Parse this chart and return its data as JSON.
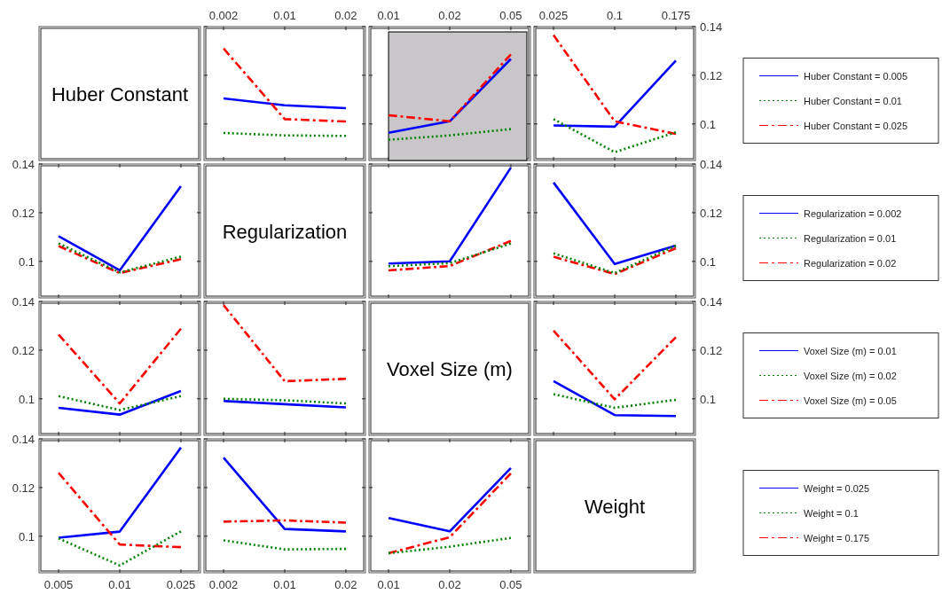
{
  "chart_data": [
    {
      "type": "other",
      "title": "Huber Constant"
    },
    {
      "type": "line",
      "categories": [
        "0.002",
        "0.01",
        "0.02"
      ],
      "ylim": [
        0.085,
        0.14
      ],
      "yticks": [
        0.1,
        0.12,
        0.14
      ],
      "tick_labels": "x",
      "series": [
        {
          "color": "#0000ff",
          "line_style": "solid",
          "values": [
            0.1105,
            0.1077,
            0.1065
          ]
        },
        {
          "color": "#008000",
          "line_style": "dotted",
          "values": [
            0.0963,
            0.0953,
            0.0951
          ]
        },
        {
          "color": "#ff0000",
          "line_style": "dashed",
          "values": [
            0.131,
            0.102,
            0.101
          ]
        }
      ]
    },
    {
      "type": "line",
      "categories": [
        "0.01",
        "0.02",
        "0.05"
      ],
      "ylim": [
        0.085,
        0.14
      ],
      "yticks": [
        0.1,
        0.12,
        0.14
      ],
      "tick_labels": "x",
      "bands": [
        {
          "axis": "x",
          "from": "0.01",
          "to": "0.05",
          "color": "#c8c6c8"
        }
      ],
      "series": [
        {
          "color": "#0000ff",
          "line_style": "solid",
          "values": [
            0.0964,
            0.1011,
            0.1267
          ]
        },
        {
          "color": "#008000",
          "line_style": "dotted",
          "values": [
            0.0935,
            0.0953,
            0.0979
          ]
        },
        {
          "color": "#ff0000",
          "line_style": "dashed",
          "values": [
            0.1036,
            0.1011,
            0.1286
          ]
        }
      ]
    },
    {
      "type": "line",
      "categories": [
        "0.025",
        "0.1",
        "0.175"
      ],
      "ylim": [
        0.085,
        0.14
      ],
      "yticks": [
        0.1,
        0.12,
        0.14
      ],
      "legend": "right",
      "series": [
        {
          "name": "Huber Constant = 0.005",
          "color": "#0000ff",
          "line_style": "solid",
          "values": [
            0.0994,
            0.0989,
            0.126
          ]
        },
        {
          "name": "Huber Constant = 0.01",
          "color": "#008000",
          "line_style": "dotted",
          "values": [
            0.102,
            0.0884,
            0.0966
          ]
        },
        {
          "name": "Huber Constant = 0.025",
          "color": "#ff0000",
          "line_style": "dashed",
          "values": [
            0.1365,
            0.1011,
            0.0959
          ]
        }
      ]
    },
    {
      "type": "line",
      "categories": [
        "0.005",
        "0.01",
        "0.025"
      ],
      "ylim": [
        0.085,
        0.14
      ],
      "yticks": [
        0.1,
        0.12,
        0.14
      ],
      "tick_labels": "y",
      "series": [
        {
          "color": "#0000ff",
          "line_style": "solid",
          "values": [
            0.1104,
            0.0963,
            0.1309
          ]
        },
        {
          "color": "#008000",
          "line_style": "dotted",
          "values": [
            0.1074,
            0.0955,
            0.1019
          ]
        },
        {
          "color": "#ff0000",
          "line_style": "dashed",
          "values": [
            0.1063,
            0.0952,
            0.1009
          ]
        }
      ]
    },
    {
      "type": "other",
      "title": "Regularization"
    },
    {
      "type": "line",
      "categories": [
        "0.01",
        "0.02",
        "0.05"
      ],
      "ylim": [
        0.085,
        0.14
      ],
      "yticks": [
        0.1,
        0.12,
        0.14
      ],
      "tick_labels": false,
      "series": [
        {
          "color": "#0000ff",
          "line_style": "solid",
          "values": [
            0.0991,
            0.1,
            0.1385
          ]
        },
        {
          "color": "#008000",
          "line_style": "dotted",
          "values": [
            0.098,
            0.0993,
            0.1073
          ]
        },
        {
          "color": "#ff0000",
          "line_style": "dashed",
          "values": [
            0.0963,
            0.0981,
            0.1084
          ]
        }
      ]
    },
    {
      "type": "line",
      "categories": [
        "0.025",
        "0.1",
        "0.175"
      ],
      "ylim": [
        0.085,
        0.14
      ],
      "yticks": [
        0.1,
        0.12,
        0.14
      ],
      "tick_labels": "y",
      "legend": "right",
      "series": [
        {
          "name": "Regularization = 0.002",
          "color": "#0000ff",
          "line_style": "solid",
          "values": [
            0.1324,
            0.0989,
            0.1065
          ]
        },
        {
          "name": "Regularization = 0.01",
          "color": "#008000",
          "line_style": "dotted",
          "values": [
            0.1033,
            0.0952,
            0.1065
          ]
        },
        {
          "name": "Regularization = 0.02",
          "color": "#ff0000",
          "line_style": "dashed",
          "values": [
            0.1019,
            0.0948,
            0.1054
          ]
        }
      ]
    },
    {
      "type": "line",
      "categories": [
        "0.005",
        "0.01",
        "0.025"
      ],
      "ylim": [
        0.085,
        0.14
      ],
      "yticks": [
        0.1,
        0.12,
        0.14
      ],
      "tick_labels": "y",
      "series": [
        {
          "color": "#0000ff",
          "line_style": "solid",
          "values": [
            0.0963,
            0.0935,
            0.1032
          ]
        },
        {
          "color": "#008000",
          "line_style": "dotted",
          "values": [
            0.1011,
            0.0954,
            0.1011
          ]
        },
        {
          "color": "#ff0000",
          "line_style": "dashed",
          "values": [
            0.1264,
            0.0981,
            0.1288
          ]
        }
      ]
    },
    {
      "type": "line",
      "categories": [
        "0.002",
        "0.01",
        "0.02"
      ],
      "ylim": [
        0.085,
        0.14
      ],
      "yticks": [
        0.1,
        0.12,
        0.14
      ],
      "tick_labels": false,
      "series": [
        {
          "color": "#0000ff",
          "line_style": "solid",
          "values": [
            0.0991,
            0.0978,
            0.0965
          ]
        },
        {
          "color": "#008000",
          "line_style": "dotted",
          "values": [
            0.1,
            0.0994,
            0.0981
          ]
        },
        {
          "color": "#ff0000",
          "line_style": "dashed",
          "values": [
            0.1385,
            0.1072,
            0.1082
          ]
        }
      ]
    },
    {
      "type": "other",
      "title": "Voxel Size (m)"
    },
    {
      "type": "line",
      "categories": [
        "0.025",
        "0.1",
        "0.175"
      ],
      "ylim": [
        0.085,
        0.14
      ],
      "yticks": [
        0.1,
        0.12,
        0.14
      ],
      "tick_labels": "y",
      "legend": "right",
      "series": [
        {
          "name": "Voxel Size (m) = 0.01",
          "color": "#0000ff",
          "line_style": "solid",
          "values": [
            0.1073,
            0.0933,
            0.0929
          ]
        },
        {
          "name": "Voxel Size (m) = 0.02",
          "color": "#008000",
          "line_style": "dotted",
          "values": [
            0.1019,
            0.0963,
            0.0996
          ]
        },
        {
          "name": "Voxel Size (m) = 0.05",
          "color": "#ff0000",
          "line_style": "dashed",
          "values": [
            0.128,
            0.0998,
            0.1253
          ]
        }
      ]
    },
    {
      "type": "line",
      "categories": [
        "0.005",
        "0.01",
        "0.025"
      ],
      "ylim": [
        0.085,
        0.14
      ],
      "yticks": [
        0.1,
        0.12,
        0.14
      ],
      "series": [
        {
          "color": "#0000ff",
          "line_style": "solid",
          "values": [
            0.0994,
            0.1019,
            0.1364
          ]
        },
        {
          "color": "#008000",
          "line_style": "dotted",
          "values": [
            0.0991,
            0.088,
            0.102
          ]
        },
        {
          "color": "#ff0000",
          "line_style": "dashed",
          "values": [
            0.126,
            0.0966,
            0.0955
          ]
        }
      ]
    },
    {
      "type": "line",
      "categories": [
        "0.002",
        "0.01",
        "0.02"
      ],
      "ylim": [
        0.085,
        0.14
      ],
      "yticks": [
        0.1,
        0.12,
        0.14
      ],
      "tick_labels": "x",
      "series": [
        {
          "color": "#0000ff",
          "line_style": "solid",
          "values": [
            0.1323,
            0.103,
            0.102
          ]
        },
        {
          "color": "#008000",
          "line_style": "dotted",
          "values": [
            0.0983,
            0.0946,
            0.0948
          ]
        },
        {
          "color": "#ff0000",
          "line_style": "dashed",
          "values": [
            0.106,
            0.1065,
            0.1056
          ]
        }
      ]
    },
    {
      "type": "line",
      "categories": [
        "0.01",
        "0.02",
        "0.05"
      ],
      "ylim": [
        0.085,
        0.14
      ],
      "yticks": [
        0.1,
        0.12,
        0.14
      ],
      "tick_labels": "x",
      "legend": "right",
      "series": [
        {
          "name": "Weight = 0.025",
          "color": "#0000ff",
          "line_style": "solid",
          "values": [
            0.1075,
            0.102,
            0.128
          ]
        },
        {
          "name": "Weight = 0.1",
          "color": "#008000",
          "line_style": "dotted",
          "values": [
            0.093,
            0.0957,
            0.0993
          ]
        },
        {
          "name": "Weight = 0.175",
          "color": "#ff0000",
          "line_style": "dashed",
          "values": [
            0.093,
            0.0996,
            0.1258
          ]
        }
      ]
    },
    {
      "type": "other",
      "title": "Weight"
    }
  ]
}
